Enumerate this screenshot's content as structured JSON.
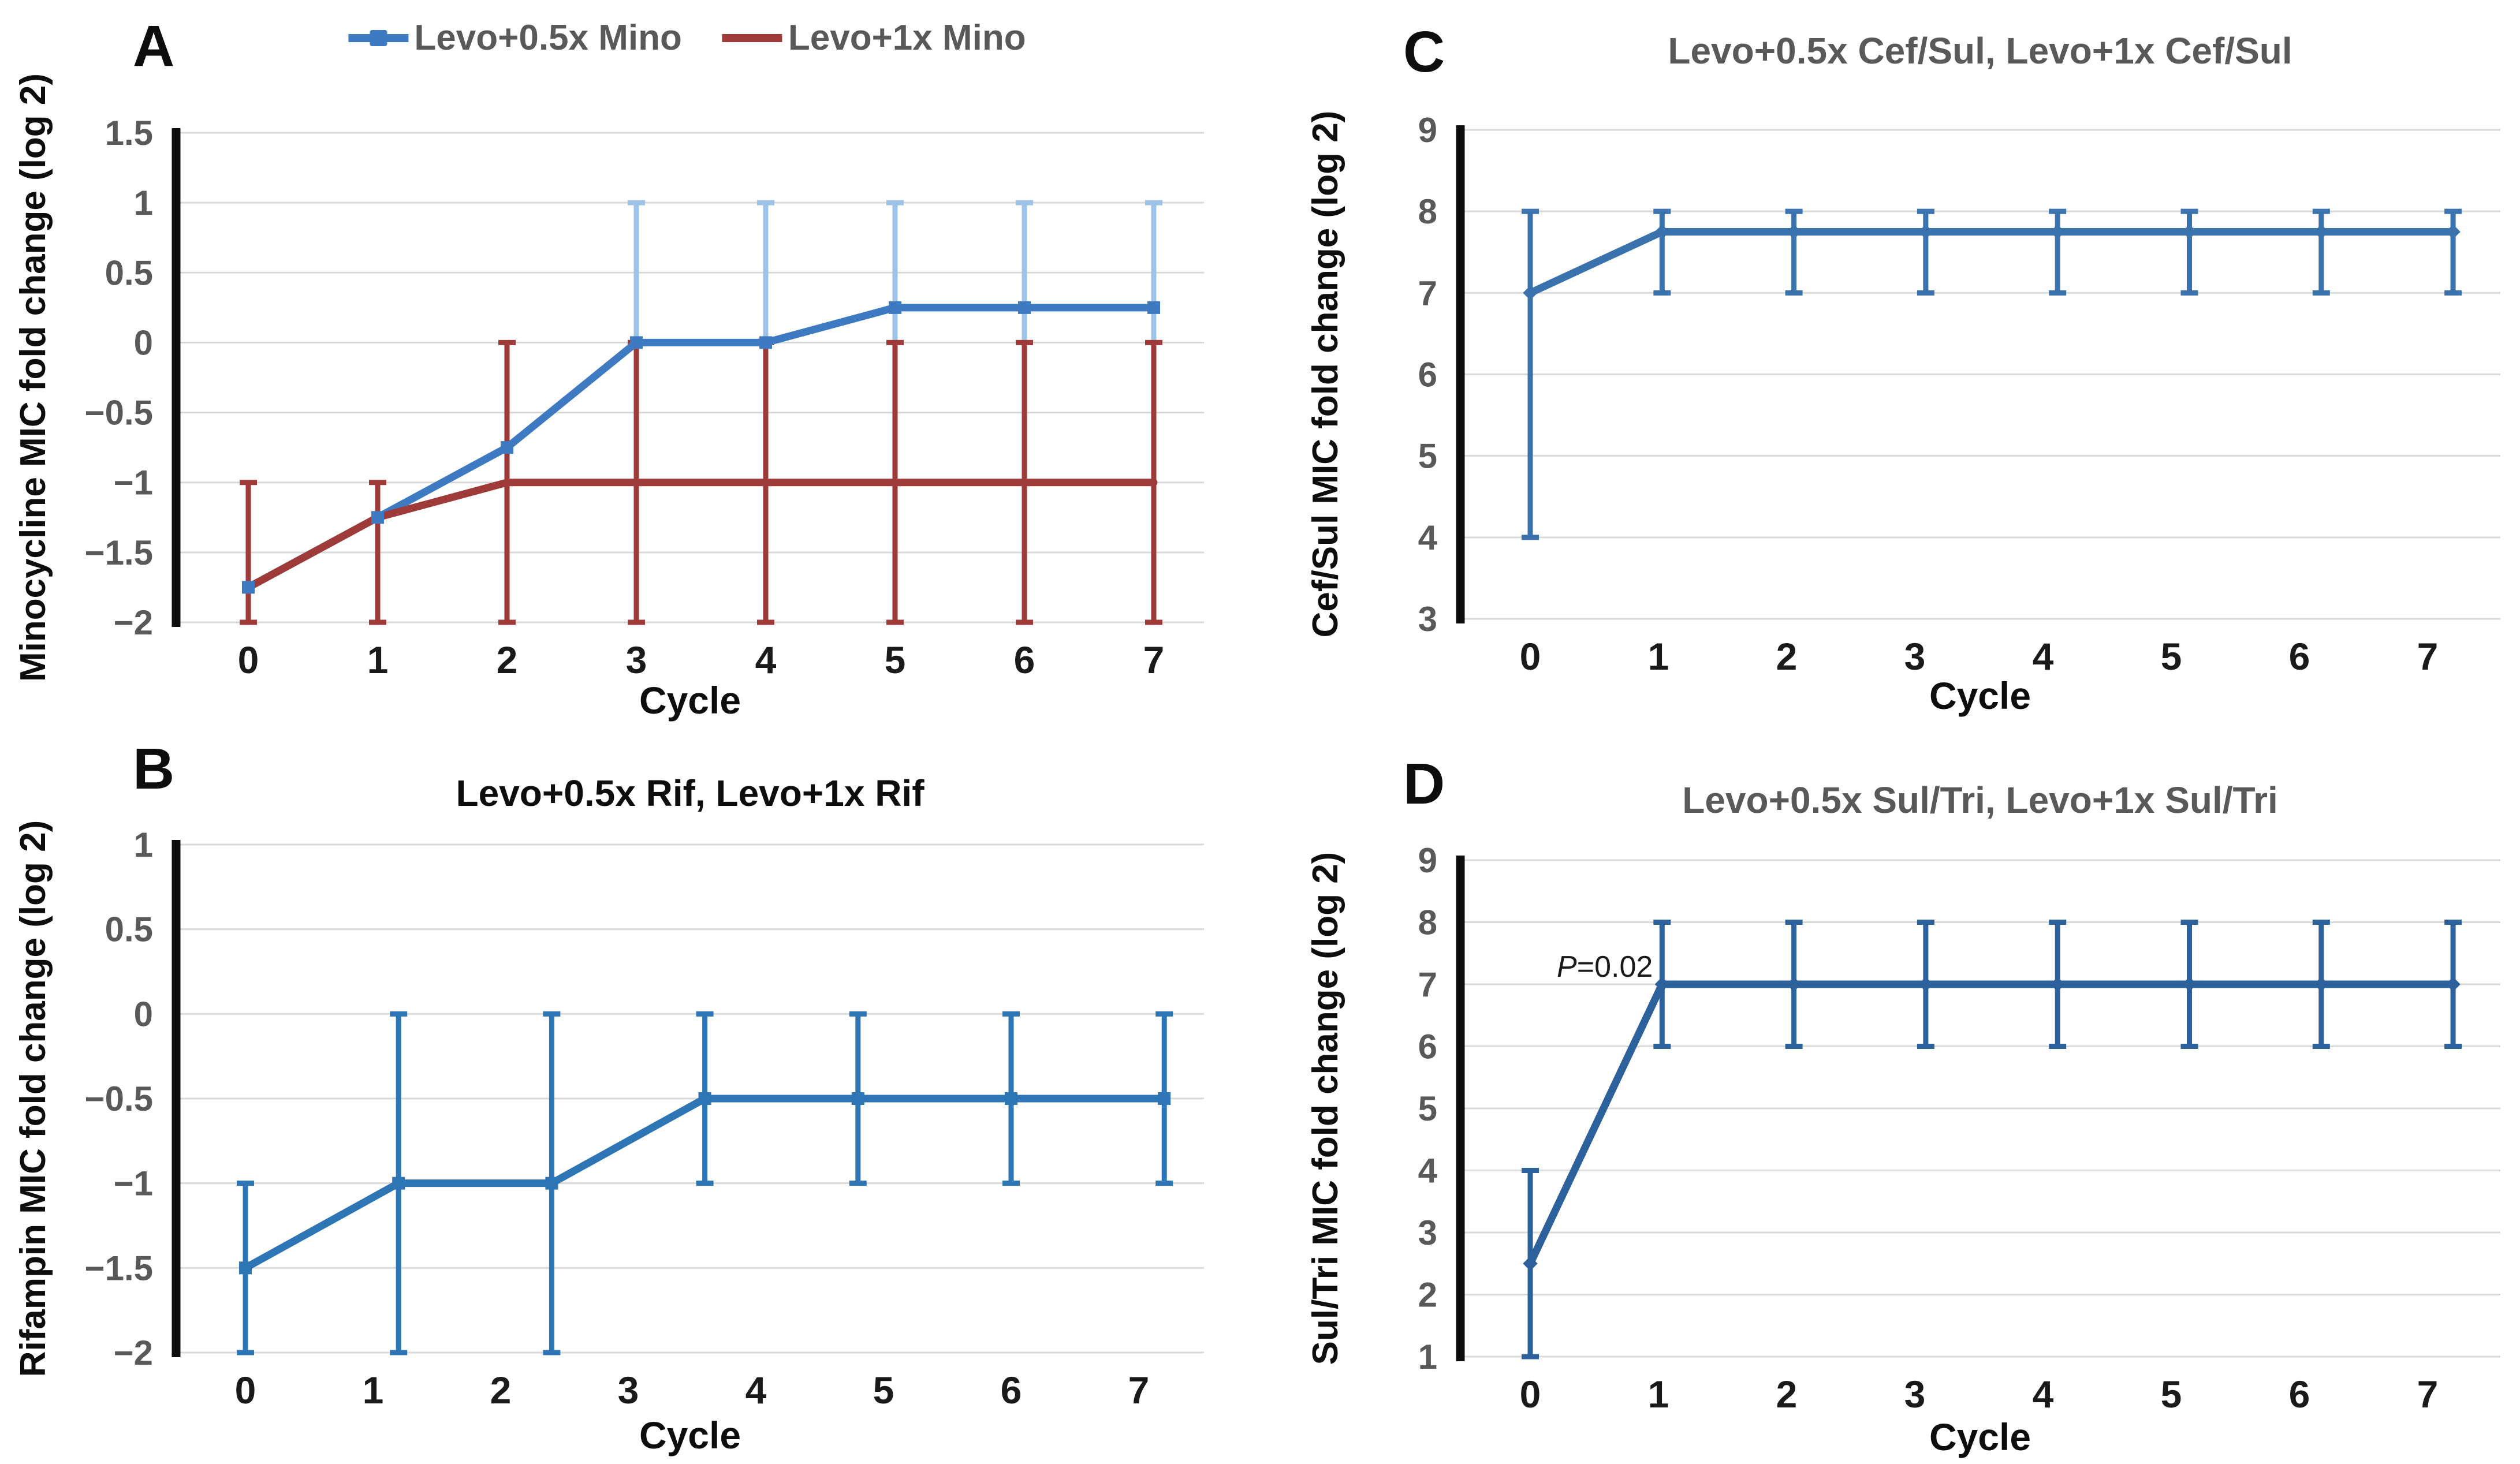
{
  "figure_text_colors": {
    "dark": "#0d0d0d",
    "gray_title": "#595959"
  },
  "chart_data": [
    {
      "type": "line",
      "panel_letter": "A",
      "title": "",
      "title_color": "#0d0d0d",
      "ylabel": "Minocycline MIC fold change (log 2)",
      "xlabel": "Cycle",
      "ylim": [
        -2,
        1.5
      ],
      "yticks": [
        1.5,
        1,
        0.5,
        0,
        -0.5,
        -1,
        -1.5,
        -2
      ],
      "yticklabels": [
        "1.5",
        "1",
        "0.5",
        "0",
        "−0.5",
        "−1",
        "−1.5",
        "−2"
      ],
      "xticklabels": [
        "0",
        "1",
        "2",
        "3",
        "4",
        "5",
        "6",
        "7"
      ],
      "grid": "horizontal",
      "legend_position": "top-center",
      "series": [
        {
          "name": "Levo+0.5x Mino",
          "color": "#3d7ac1",
          "err_color": "#9dc3e6",
          "marker": "square",
          "x": [
            0,
            1,
            2,
            3,
            4,
            5,
            6,
            7
          ],
          "values": [
            -1.75,
            -1.25,
            -0.75,
            0,
            0,
            0.25,
            0.25,
            0.25
          ],
          "error_bars": [
            {
              "x": 3,
              "lo": 0,
              "hi": 1
            },
            {
              "x": 4,
              "lo": 0,
              "hi": 1
            },
            {
              "x": 5,
              "lo": 0,
              "hi": 1
            },
            {
              "x": 6,
              "lo": 0,
              "hi": 1
            },
            {
              "x": 7,
              "lo": 0,
              "hi": 1
            }
          ]
        },
        {
          "name": "Levo+1x Mino",
          "color": "#9e3a38",
          "err_color": "#9e3a38",
          "marker": "none",
          "x": [
            0,
            1,
            2,
            3,
            4,
            5,
            6,
            7
          ],
          "values": [
            -1.75,
            -1.25,
            -1,
            -1,
            -1,
            -1,
            -1,
            -1
          ],
          "error_bars": [
            {
              "x": 0,
              "lo": -2,
              "hi": -1
            },
            {
              "x": 1,
              "lo": -2,
              "hi": -1
            },
            {
              "x": 2,
              "lo": -2,
              "hi": 0
            },
            {
              "x": 3,
              "lo": -2,
              "hi": 0
            },
            {
              "x": 4,
              "lo": -2,
              "hi": 0
            },
            {
              "x": 5,
              "lo": -2,
              "hi": 0
            },
            {
              "x": 6,
              "lo": -2,
              "hi": 0
            },
            {
              "x": 7,
              "lo": -2,
              "hi": 0
            }
          ]
        }
      ]
    },
    {
      "type": "line",
      "panel_letter": "B",
      "title": "Levo+0.5x Rif, Levo+1x Rif",
      "title_color": "#0d0d0d",
      "ylabel": "Rifampin MIC fold change (log 2)",
      "xlabel": "Cycle",
      "ylim": [
        -2,
        1
      ],
      "yticks": [
        1,
        0.5,
        0,
        -0.5,
        -1,
        -1.5,
        -2
      ],
      "yticklabels": [
        "1",
        "0.5",
        "0",
        "−0.5",
        "−1",
        "−1.5",
        "−2"
      ],
      "xticklabels": [
        "0",
        "1",
        "2",
        "3",
        "4",
        "5",
        "6",
        "7"
      ],
      "grid": "horizontal",
      "series": [
        {
          "name": "Levo+0.5x Rif, Levo+1x Rif",
          "color": "#2e75b6",
          "err_color": "#2e75b6",
          "marker": "square",
          "x": [
            0,
            1,
            2,
            3,
            4,
            5,
            6
          ],
          "values": [
            -1.5,
            -1,
            -1,
            -0.5,
            -0.5,
            -0.5,
            -0.5
          ],
          "error_bars": [
            {
              "x": 0,
              "lo": -2,
              "hi": -1
            },
            {
              "x": 1,
              "lo": -2,
              "hi": 0
            },
            {
              "x": 2,
              "lo": -2,
              "hi": 0
            },
            {
              "x": 3,
              "lo": -1,
              "hi": 0
            },
            {
              "x": 4,
              "lo": -1,
              "hi": 0
            },
            {
              "x": 5,
              "lo": -1,
              "hi": 0
            },
            {
              "x": 6,
              "lo": -1,
              "hi": 0
            }
          ]
        }
      ]
    },
    {
      "type": "line",
      "panel_letter": "C",
      "title": "Levo+0.5x Cef/Sul, Levo+1x Cef/Sul",
      "title_color": "#595959",
      "ylabel": "Cef/Sul MIC fold change (log 2)",
      "xlabel": "Cycle",
      "ylim": [
        3,
        9
      ],
      "yticks": [
        9,
        8,
        7,
        6,
        5,
        4,
        3
      ],
      "yticklabels": [
        "9",
        "8",
        "7",
        "6",
        "5",
        "4",
        "3"
      ],
      "xticklabels": [
        "0",
        "1",
        "2",
        "3",
        "4",
        "5",
        "6",
        "7"
      ],
      "grid": "horizontal",
      "series": [
        {
          "name": "Levo+0.5x Cef/Sul, Levo+1x Cef/Sul",
          "color": "#3a72ae",
          "err_color": "#3a72ae",
          "marker": "diamond",
          "x": [
            0,
            1,
            2,
            3,
            4,
            5,
            6,
            7
          ],
          "values": [
            7,
            7.75,
            7.75,
            7.75,
            7.75,
            7.75,
            7.75,
            7.75
          ],
          "error_bars": [
            {
              "x": 0,
              "lo": 4,
              "hi": 8
            },
            {
              "x": 1,
              "lo": 7,
              "hi": 8
            },
            {
              "x": 2,
              "lo": 7,
              "hi": 8
            },
            {
              "x": 3,
              "lo": 7,
              "hi": 8
            },
            {
              "x": 4,
              "lo": 7,
              "hi": 8
            },
            {
              "x": 5,
              "lo": 7,
              "hi": 8
            },
            {
              "x": 6,
              "lo": 7,
              "hi": 8
            },
            {
              "x": 7,
              "lo": 7,
              "hi": 8
            }
          ]
        }
      ]
    },
    {
      "type": "line",
      "panel_letter": "D",
      "title": "Levo+0.5x Sul/Tri, Levo+1x Sul/Tri",
      "title_color": "#595959",
      "ylabel": "Sul/Tri MIC fold change (log 2)",
      "xlabel": "Cycle",
      "ylim": [
        1,
        9
      ],
      "yticks": [
        9,
        8,
        7,
        6,
        5,
        4,
        3,
        2,
        1
      ],
      "yticklabels": [
        "9",
        "8",
        "7",
        "6",
        "5",
        "4",
        "3",
        "2",
        "1"
      ],
      "xticklabels": [
        "0",
        "1",
        "2",
        "3",
        "4",
        "5",
        "6",
        "7"
      ],
      "grid": "horizontal",
      "annotation": {
        "prefix": "P",
        "rest": "=0.02",
        "x": 0.93,
        "y": 7.12
      },
      "series": [
        {
          "name": "Levo+0.5x Sul/Tri, Levo+1x Sul/Tri",
          "color": "#2d619b",
          "err_color": "#2d619b",
          "marker": "diamond",
          "x": [
            0,
            1,
            2,
            3,
            4,
            5,
            6,
            7
          ],
          "values": [
            2.5,
            7,
            7,
            7,
            7,
            7,
            7,
            7
          ],
          "error_bars": [
            {
              "x": 0,
              "lo": 1,
              "hi": 4
            },
            {
              "x": 1,
              "lo": 6,
              "hi": 8
            },
            {
              "x": 2,
              "lo": 6,
              "hi": 8
            },
            {
              "x": 3,
              "lo": 6,
              "hi": 8
            },
            {
              "x": 4,
              "lo": 6,
              "hi": 8
            },
            {
              "x": 5,
              "lo": 6,
              "hi": 8
            },
            {
              "x": 6,
              "lo": 6,
              "hi": 8
            },
            {
              "x": 7,
              "lo": 6,
              "hi": 8
            }
          ]
        }
      ]
    }
  ]
}
